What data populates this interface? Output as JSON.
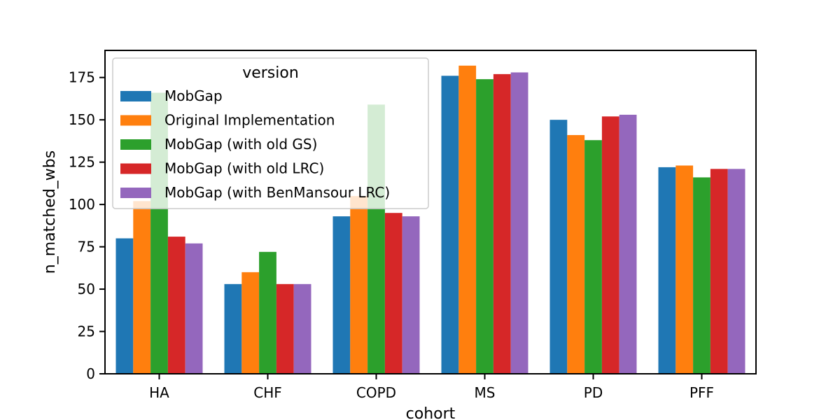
{
  "chart_data": {
    "type": "bar",
    "title": "",
    "xlabel": "cohort",
    "ylabel": "n_matched_wbs",
    "ylim": [
      0,
      191
    ],
    "yticks": [
      0,
      25,
      50,
      75,
      100,
      125,
      150,
      175
    ],
    "categories": [
      "HA",
      "CHF",
      "COPD",
      "MS",
      "PD",
      "PFF"
    ],
    "legend": {
      "title": "version",
      "placement": "upper-left"
    },
    "grid": false,
    "series": [
      {
        "name": "MobGap",
        "color": "#1f77b4",
        "values": [
          80,
          53,
          93,
          176,
          150,
          122
        ]
      },
      {
        "name": "Original Implementation",
        "color": "#ff7f0e",
        "values": [
          102,
          60,
          105,
          182,
          141,
          123
        ]
      },
      {
        "name": "MobGap (with old GS)",
        "color": "#2ca02c",
        "values": [
          166,
          72,
          159,
          174,
          138,
          116
        ]
      },
      {
        "name": "MobGap (with old LRC)",
        "color": "#d62728",
        "values": [
          81,
          53,
          95,
          177,
          152,
          121
        ]
      },
      {
        "name": "MobGap (with BenMansour LRC)",
        "color": "#9467bd",
        "values": [
          77,
          53,
          93,
          178,
          153,
          121
        ]
      }
    ]
  }
}
